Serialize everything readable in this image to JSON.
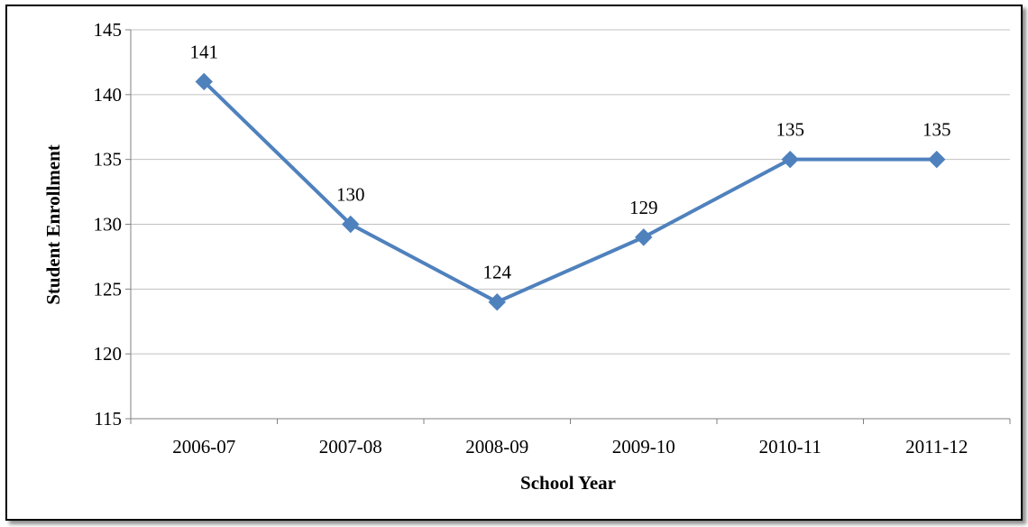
{
  "chart_data": {
    "type": "line",
    "title": "",
    "xlabel": "School Year",
    "ylabel": "Student Enrollment",
    "categories": [
      "2006-07",
      "2007-08",
      "2008-09",
      "2009-10",
      "2010-11",
      "2011-12"
    ],
    "series": [
      {
        "values": [
          141,
          130,
          124,
          129,
          135,
          135
        ]
      }
    ],
    "data_labels": [
      "141",
      "130",
      "124",
      "129",
      "135",
      "135"
    ],
    "ylim": [
      115,
      145
    ],
    "y_ticks": [
      "115",
      "120",
      "125",
      "130",
      "135",
      "140",
      "145"
    ],
    "grid": true,
    "legend": "none",
    "marker": "diamond",
    "colors": {
      "series": "#4F81BD",
      "grid": "#C0C0C0",
      "axis": "#808080"
    }
  }
}
